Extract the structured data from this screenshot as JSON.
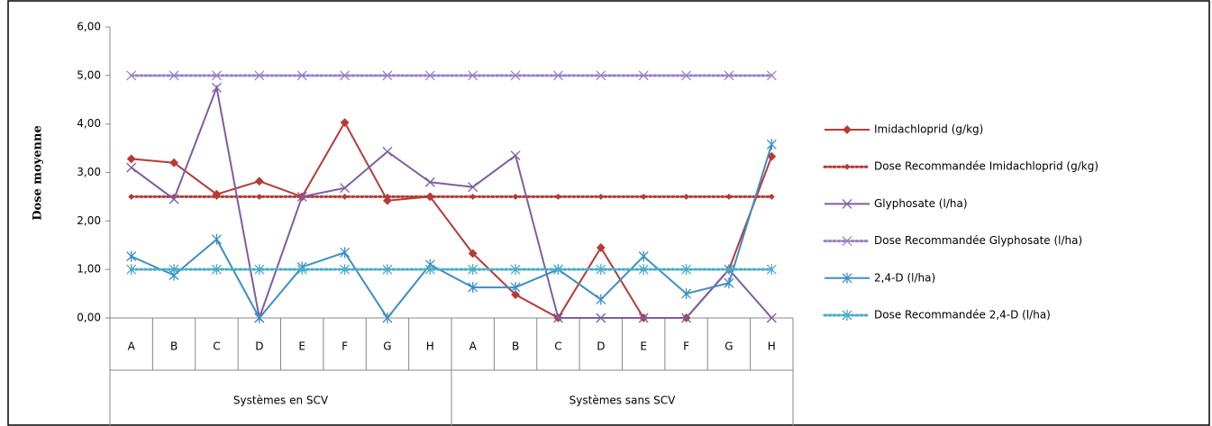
{
  "chart_data": {
    "type": "line",
    "y_label": "Dose moyenne",
    "groups": [
      {
        "name": "Systèmes en SCV",
        "categories": [
          "A",
          "B",
          "C",
          "D",
          "E",
          "F",
          "G",
          "H"
        ]
      },
      {
        "name": "Systèmes sans SCV",
        "categories": [
          "A",
          "B",
          "C",
          "D",
          "E",
          "F",
          "G",
          "H"
        ]
      }
    ],
    "ylim": [
      0,
      6
    ],
    "yticks": [
      {
        "value": 0,
        "label": "0,00"
      },
      {
        "value": 1,
        "label": "1,00"
      },
      {
        "value": 2,
        "label": "2,00"
      },
      {
        "value": 3,
        "label": "3,00"
      },
      {
        "value": 4,
        "label": "4,00"
      },
      {
        "value": 5,
        "label": "5,00"
      },
      {
        "value": 6,
        "label": "6,00"
      }
    ],
    "legend": "right",
    "series": [
      {
        "name": "Imidachloprid (g/kg)",
        "color": "#b83a35",
        "line_style": "solid",
        "marker": "diamond",
        "values": [
          3.28,
          3.2,
          2.55,
          2.82,
          2.5,
          4.03,
          2.42,
          2.5,
          1.33,
          0.48,
          0,
          1.45,
          0,
          0,
          1.0,
          3.33
        ]
      },
      {
        "name": "Dose Recommandée Imidachloprid (g/kg)",
        "color": "#b83a35",
        "line_style": "dotted",
        "marker": "diamond",
        "values": [
          2.5,
          2.5,
          2.5,
          2.5,
          2.5,
          2.5,
          2.5,
          2.5,
          2.5,
          2.5,
          2.5,
          2.5,
          2.5,
          2.5,
          2.5,
          2.5
        ]
      },
      {
        "name": "Glyphosate (l/ha)",
        "color": "#7d5ea3",
        "line_style": "solid",
        "marker": "x",
        "values": [
          3.1,
          2.45,
          4.75,
          0,
          2.5,
          2.68,
          3.43,
          2.8,
          2.7,
          3.35,
          0,
          0,
          0,
          0,
          1.0,
          0
        ]
      },
      {
        "name": "Dose Recommandée Glyphosate (l/ha)",
        "color": "#9b82c4",
        "line_style": "dotted",
        "marker": "x",
        "values": [
          5,
          5,
          5,
          5,
          5,
          5,
          5,
          5,
          5,
          5,
          5,
          5,
          5,
          5,
          5,
          5
        ]
      },
      {
        "name": "2,4-D (l/ha)",
        "color": "#3b8fc4",
        "line_style": "solid",
        "marker": "asterisk",
        "values": [
          1.27,
          0.88,
          1.62,
          0,
          1.05,
          1.35,
          0,
          1.1,
          0.63,
          0.63,
          1.0,
          0.38,
          1.27,
          0.5,
          0.72,
          3.58
        ]
      },
      {
        "name": "Dose Recommandée 2,4-D (l/ha)",
        "color": "#4bacc6",
        "line_style": "dotted",
        "marker": "asterisk",
        "values": [
          1,
          1,
          1,
          1,
          1,
          1,
          1,
          1,
          1,
          1,
          1,
          1,
          1,
          1,
          1,
          1
        ]
      }
    ]
  }
}
